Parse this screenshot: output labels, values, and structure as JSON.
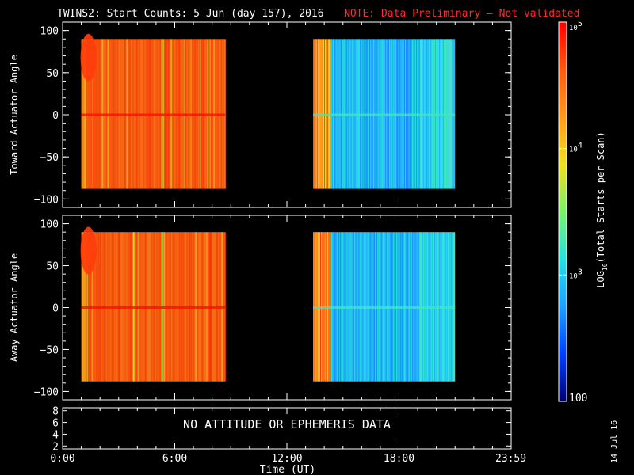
{
  "title": {
    "main": "TWINS2: Start Counts:  5 Jun (day 157), 2016",
    "note": "NOTE: Data Preliminary – Not validated"
  },
  "colors": {
    "background": "#000000",
    "foreground": "#ffffff",
    "note": "#ff2a2a",
    "colormap": [
      "#00006e",
      "#0040ff",
      "#1fa0ff",
      "#28e0e0",
      "#7cf06e",
      "#f0e020",
      "#ff9a1f",
      "#ff5a10",
      "#ff0000"
    ]
  },
  "chart_data": [
    {
      "type": "heatmap",
      "panel": "toward",
      "ylabel": "Toward Actuator Angle",
      "ylim": [
        -110,
        110
      ],
      "yticks": [
        "100",
        "50",
        "0",
        "−50",
        "−100"
      ],
      "ytick_values": [
        100,
        50,
        0,
        -50,
        -100
      ],
      "xlim": [
        0,
        24
      ],
      "y_extent": [
        -88,
        90
      ],
      "segments": [
        {
          "start": 1.0,
          "end": 8.7,
          "log_counts_range": [
            3.6,
            4.9
          ],
          "typical": 4.6
        },
        {
          "start": 13.4,
          "end": 21.0,
          "log_counts_range": [
            2.4,
            3.5
          ],
          "typical": 2.9
        }
      ],
      "grid": false
    },
    {
      "type": "heatmap",
      "panel": "away",
      "ylabel": "Away Actuator Angle",
      "ylim": [
        -110,
        110
      ],
      "yticks": [
        "100",
        "50",
        "0",
        "−50",
        "−100"
      ],
      "ytick_values": [
        100,
        50,
        0,
        -50,
        -100
      ],
      "xlim": [
        0,
        24
      ],
      "y_extent": [
        -88,
        90
      ],
      "segments": [
        {
          "start": 1.0,
          "end": 8.7,
          "log_counts_range": [
            3.6,
            4.9
          ],
          "typical": 4.6
        },
        {
          "start": 13.4,
          "end": 21.0,
          "log_counts_range": [
            2.4,
            3.6
          ],
          "typical": 2.9
        }
      ],
      "grid": false
    },
    {
      "type": "line",
      "panel": "attitude",
      "yticks": [
        "8",
        "6",
        "4",
        "2"
      ],
      "ytick_values": [
        8,
        6,
        4,
        2
      ],
      "ylim": [
        1.5,
        8.5
      ],
      "message": "NO ATTITUDE OR EPHEMERIS DATA"
    }
  ],
  "xaxis": {
    "label": "Time (UT)",
    "ticks": [
      "0:00",
      "6:00",
      "12:00",
      "18:00",
      "23:59"
    ],
    "tick_values": [
      0,
      6,
      12,
      18,
      23.98
    ]
  },
  "colorbar": {
    "label": "LOG10(Total Starts per Scan)",
    "label_main": "LOG",
    "label_sub": "10",
    "label_rest": "(Total Starts per Scan)",
    "range": [
      2,
      5
    ],
    "ticks": [
      {
        "value": 5,
        "base": "10",
        "exp": "5"
      },
      {
        "value": 4,
        "base": "10",
        "exp": "4"
      },
      {
        "value": 3,
        "base": "10",
        "exp": "3"
      },
      {
        "value": 2,
        "base": "100",
        "exp": ""
      }
    ]
  },
  "plot_date": "14 Jul 16"
}
